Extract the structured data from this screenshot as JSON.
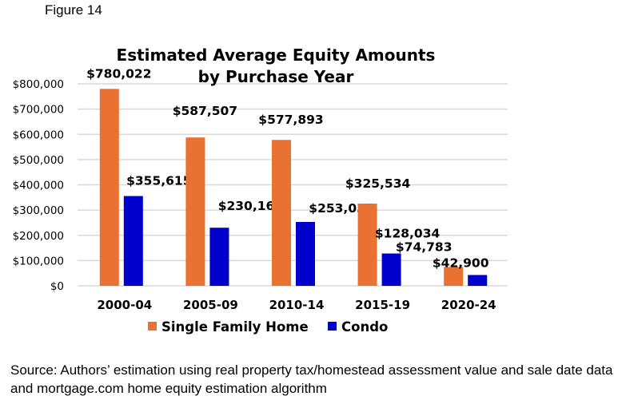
{
  "figure_label": "Figure 14",
  "source_note": "Source: Authors’ estimation using real property tax/homestead assessment value and sale date data and mortgage.com home equity estimation algorithm",
  "chart_data": {
    "type": "bar",
    "title_lines": [
      "Estimated Average Equity Amounts",
      "by Purchase Year"
    ],
    "categories": [
      "2000-04",
      "2005-09",
      "2010-14",
      "2015-19",
      "2020-24"
    ],
    "series": [
      {
        "name": "Single Family Home",
        "color": "#E97132",
        "values": [
          780022,
          587507,
          577893,
          325534,
          74783
        ],
        "labels": [
          "$780,022",
          "$587,507",
          "$577,893",
          "$325,534",
          "$74,783"
        ]
      },
      {
        "name": "Condo",
        "color": "#0000CC",
        "values": [
          355615,
          230165,
          253035,
          128034,
          42900
        ],
        "labels": [
          "$355,615",
          "$230,165",
          "$253,035",
          "$128,034",
          "$42,900"
        ]
      }
    ],
    "ylim": [
      0,
      800000
    ],
    "yticks": [
      0,
      100000,
      200000,
      300000,
      400000,
      500000,
      600000,
      700000,
      800000
    ],
    "ytick_labels": [
      "$0",
      "$100,000",
      "$200,000",
      "$300,000",
      "$400,000",
      "$500,000",
      "$600,000",
      "$700,000",
      "$800,000"
    ],
    "grid": true,
    "legend_position": "bottom"
  }
}
